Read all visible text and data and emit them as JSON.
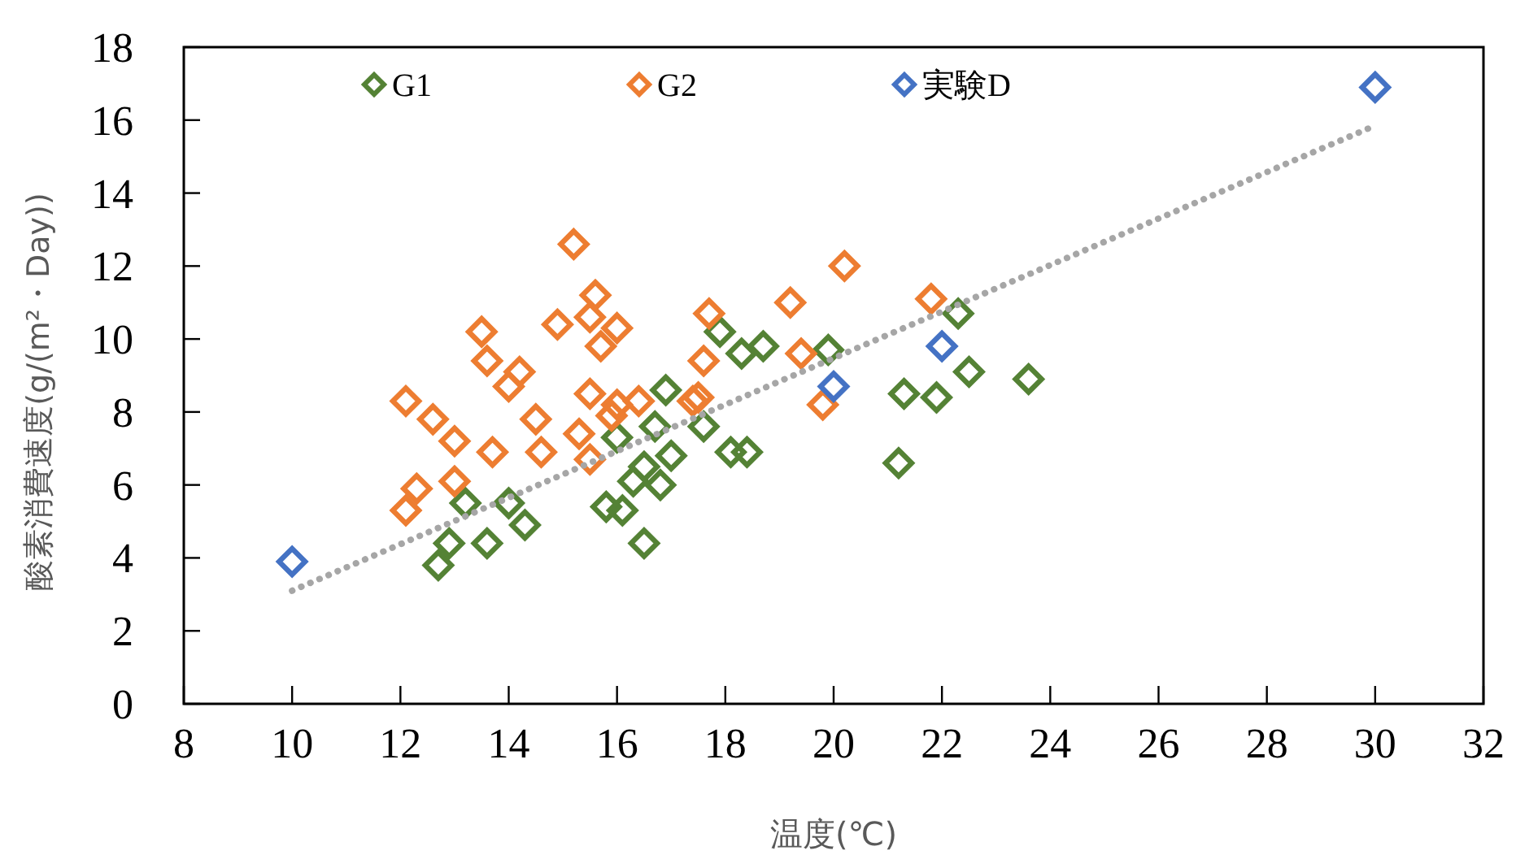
{
  "chart_data": {
    "type": "scatter",
    "xlabel": "温度(℃)",
    "ylabel": "酸素消費速度(g/(m²・Day))",
    "xlim": [
      8,
      32
    ],
    "xticks": [
      8,
      10,
      12,
      14,
      16,
      18,
      20,
      22,
      24,
      26,
      28,
      30,
      32
    ],
    "ylim": [
      0,
      18
    ],
    "yticks": [
      0,
      2,
      4,
      6,
      8,
      10,
      12,
      14,
      16,
      18
    ],
    "grid": false,
    "legend": "top",
    "marker": "diamond",
    "series": [
      {
        "name": "G1",
        "color": "#548235",
        "x": [
          12.7,
          12.9,
          13.2,
          13.6,
          14.0,
          14.3,
          15.8,
          16.1,
          16.3,
          16.5,
          16.8,
          17.0,
          16.5,
          16.7,
          16.9,
          16.0,
          17.6,
          18.1,
          18.4,
          17.9,
          18.3,
          18.7,
          19.9,
          22.3,
          22.5,
          23.6,
          21.3,
          21.9,
          21.2
        ],
        "values": [
          3.8,
          4.4,
          5.5,
          4.4,
          5.5,
          4.9,
          5.4,
          5.3,
          6.1,
          6.5,
          6.0,
          6.8,
          4.4,
          7.6,
          8.6,
          7.3,
          7.6,
          6.9,
          6.9,
          10.2,
          9.6,
          9.8,
          9.7,
          10.7,
          9.1,
          8.9,
          8.5,
          8.4,
          6.6
        ]
      },
      {
        "name": "G2",
        "color": "#ed7d31",
        "x": [
          15.2,
          15.6,
          15.5,
          14.9,
          16.0,
          15.7,
          13.5,
          13.6,
          14.2,
          14.0,
          17.7,
          19.2,
          20.2,
          19.4,
          17.6,
          19.8,
          17.5,
          17.4,
          12.1,
          12.6,
          13.0,
          13.7,
          14.5,
          14.6,
          15.5,
          16.0,
          16.4,
          15.9,
          15.3,
          15.5,
          12.3,
          12.1,
          13.0,
          21.8
        ],
        "values": [
          12.6,
          11.2,
          10.6,
          10.4,
          10.3,
          9.8,
          10.2,
          9.4,
          9.1,
          8.7,
          10.7,
          11.0,
          12.0,
          9.6,
          9.4,
          8.2,
          8.4,
          8.3,
          8.3,
          7.8,
          7.2,
          6.9,
          7.8,
          6.9,
          8.5,
          8.2,
          8.3,
          7.9,
          7.4,
          6.7,
          5.9,
          5.3,
          6.1,
          11.1
        ]
      },
      {
        "name": "実験D",
        "color": "#4472c4",
        "x": [
          10,
          20,
          22,
          30
        ],
        "values": [
          3.9,
          8.7,
          9.8,
          16.9
        ]
      },
      {
        "type": "line",
        "color": "#a6a6a6",
        "line_style": "dotted",
        "marker": "none",
        "x": [
          10,
          30
        ],
        "values": [
          3.1,
          15.85
        ]
      }
    ]
  }
}
